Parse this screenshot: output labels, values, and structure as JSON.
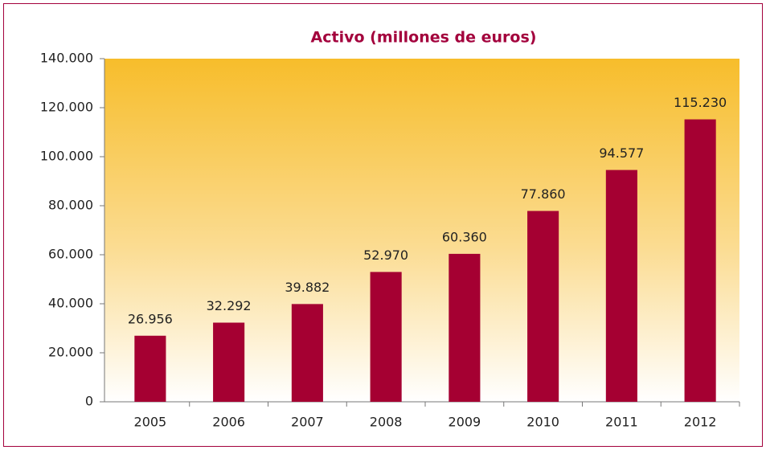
{
  "chart_data": {
    "type": "bar",
    "title": "Activo (millones de euros)",
    "categories": [
      "2005",
      "2006",
      "2007",
      "2008",
      "2009",
      "2010",
      "2011",
      "2012"
    ],
    "values": [
      26956,
      32292,
      39882,
      52970,
      60360,
      77860,
      94577,
      115230
    ],
    "value_labels": [
      "26.956",
      "32.292",
      "39.882",
      "52.970",
      "60.360",
      "77.860",
      "94.577",
      "115.230"
    ],
    "color": "#a50032",
    "ylim": [
      0,
      140000
    ],
    "yticks": [
      0,
      {
        "value": 20000,
        "label": "20.000"
      },
      {
        "value": 40000,
        "label": "40.000"
      },
      {
        "value": 60000,
        "label": "60.000"
      },
      {
        "value": 80000,
        "label": "80.000"
      },
      {
        "value": 100000,
        "label": "100.000"
      },
      {
        "value": 120000,
        "label": "120.000"
      },
      {
        "value": 140000,
        "label": "140.000"
      }
    ],
    "grid": false
  }
}
